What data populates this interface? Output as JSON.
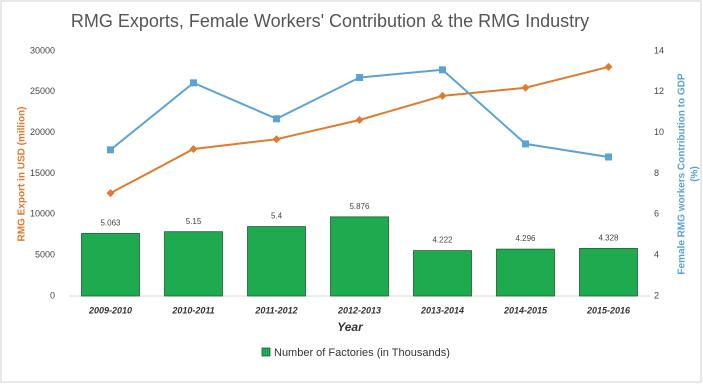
{
  "chart_data": {
    "type": "combo",
    "title": "RMG Exports, Female Workers' Contribution & the RMG Industry",
    "x_label": "Year",
    "y_label": "RMG Export in USD (million)",
    "y2_label": [
      "Female RMG workers Contribution to GDP",
      "(%)"
    ],
    "categories": [
      "2009-2010",
      "2010-2011",
      "2011-2012",
      "2012-2013",
      "2013-2014",
      "2014-2015",
      "2015-2016"
    ],
    "ylim": [
      0,
      30000
    ],
    "yticks": [
      0,
      5000,
      10000,
      15000,
      20000,
      25000,
      30000
    ],
    "y2lim": [
      2,
      14
    ],
    "y2ticks": [
      2,
      4,
      6,
      8,
      10,
      12,
      14
    ],
    "legend": "bottom",
    "series": [
      {
        "type": "bar",
        "name": "Number of Factories (in Thousands)",
        "color": "#1faa4f",
        "axis": "y2",
        "values": [
          5.063,
          5.15,
          5.4,
          5.876,
          4.222,
          4.296,
          4.328
        ]
      },
      {
        "type": "line",
        "color": "#e07a2e",
        "axis": "y",
        "marker": "diamond",
        "values": [
          12600,
          18000,
          19200,
          21550,
          24500,
          25500,
          28050
        ]
      },
      {
        "type": "line",
        "color": "#5ba3d6",
        "axis": "y2",
        "marker": "square",
        "values": [
          9.16,
          12.44,
          10.68,
          12.7,
          13.08,
          9.45,
          8.81
        ]
      }
    ]
  }
}
